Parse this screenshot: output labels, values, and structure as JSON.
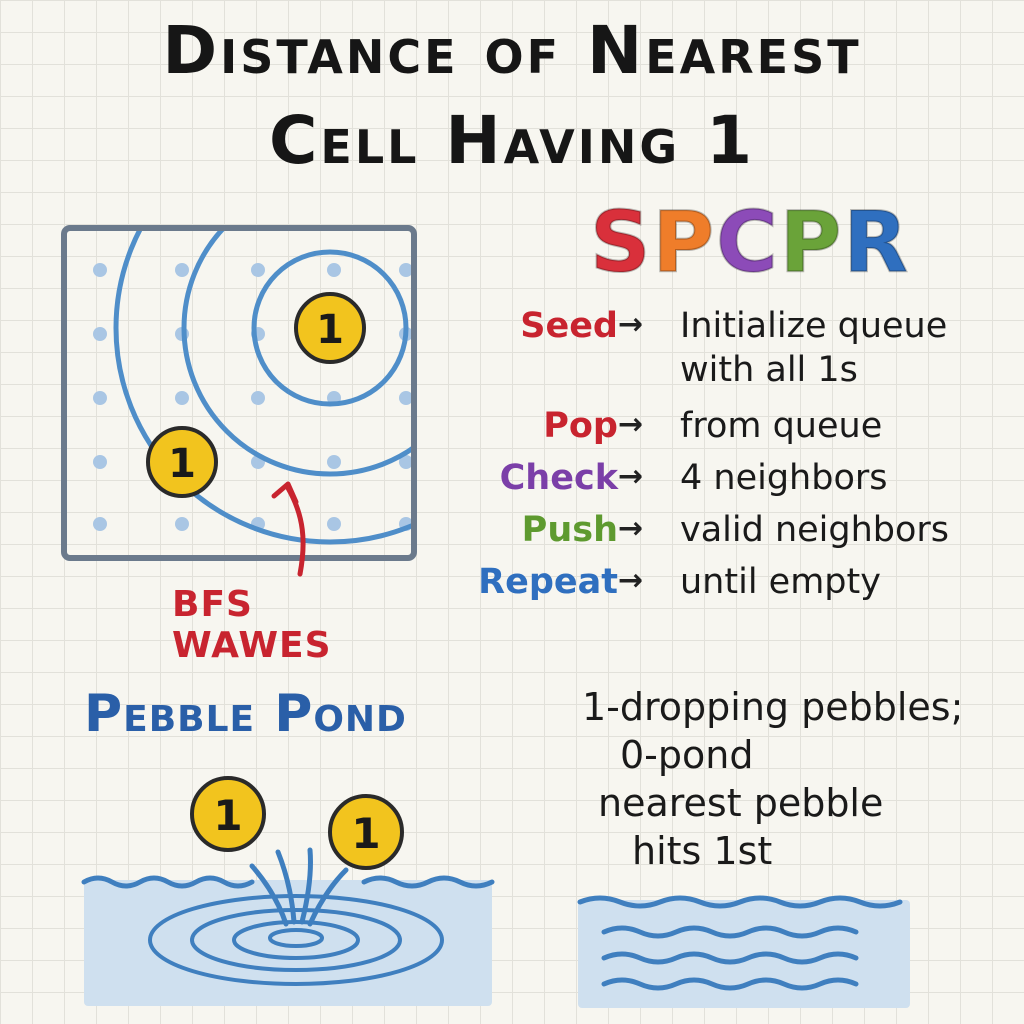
{
  "title": {
    "line1": "Distance of Nearest",
    "line2": "Cell Having 1"
  },
  "grid_diagram": {
    "pebble_labels": [
      "1",
      "1"
    ],
    "callout_label": "BFS WAWES",
    "colors": {
      "border": "#6b7a8c",
      "dots": "#a9c6e4",
      "waves": "#4f8ec9",
      "pebble": "#f2c41e",
      "callout": "#c8242f"
    }
  },
  "mnemonic": {
    "letters": [
      {
        "char": "S",
        "color": "#d9303b"
      },
      {
        "char": "P",
        "color": "#ef7d2a"
      },
      {
        "char": "C",
        "color": "#8c4bb8"
      },
      {
        "char": "P",
        "color": "#6aa339"
      },
      {
        "char": "R",
        "color": "#2f6fbf"
      }
    ]
  },
  "steps": [
    {
      "key": "Seed",
      "arrow": "→",
      "desc": "Initialize queue",
      "desc2": "with all 1s",
      "color": "#c8242f"
    },
    {
      "key": "Pop",
      "arrow": "→",
      "desc": "from queue",
      "color": "#c8242f"
    },
    {
      "key": "Check",
      "arrow": "→",
      "desc": "4 neighbors",
      "color": "#7b3fa8"
    },
    {
      "key": "Push",
      "arrow": "→",
      "desc": "valid neighbors",
      "color": "#5e9a2f"
    },
    {
      "key": "Repeat",
      "arrow": "→",
      "desc": "until empty",
      "color": "#2f6fbf"
    }
  ],
  "pond": {
    "title": "Pebble Pond",
    "pebble_labels": [
      "1",
      "1"
    ],
    "colors": {
      "water": "#cfe0ef",
      "wave": "#3f7fbf",
      "title": "#2a5fa8"
    }
  },
  "analogy": {
    "lines": [
      "1-dropping pebbles;",
      "0-pond",
      "nearest pebble",
      "hits 1st"
    ]
  }
}
